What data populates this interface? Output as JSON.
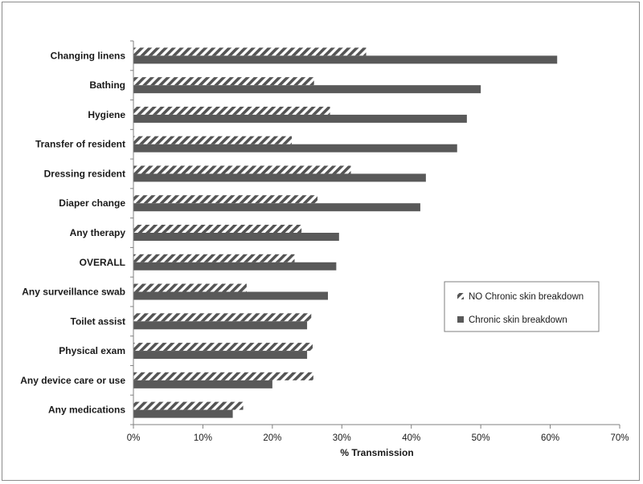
{
  "chart_data": {
    "type": "bar",
    "orientation": "horizontal",
    "categories": [
      "Changing linens",
      "Bathing",
      "Hygiene",
      "Transfer of resident",
      "Dressing resident",
      "Diaper change",
      "Any therapy",
      "OVERALL",
      "Any surveillance swab",
      "Toilet assist",
      "Physical exam",
      "Any device care or use",
      "Any medications"
    ],
    "series": [
      {
        "name": "NO Chronic skin breakdown",
        "pattern": "diagonal-hatch",
        "color": "#555555",
        "values": [
          33.5,
          26,
          28.3,
          22.8,
          31.3,
          26.5,
          24.2,
          23.2,
          16.3,
          25.6,
          25.8,
          25.9,
          15.8
        ]
      },
      {
        "name": "Chronic skin breakdown",
        "pattern": "solid",
        "color": "#595959",
        "values": [
          61,
          50,
          48,
          46.6,
          42.1,
          41.3,
          29.6,
          29.2,
          28,
          25,
          25,
          20,
          14.3
        ]
      }
    ],
    "xlabel": "% Transmission",
    "ylabel": "",
    "xlim": [
      0,
      70
    ],
    "x_ticks": [
      "0%",
      "10%",
      "20%",
      "30%",
      "40%",
      "50%",
      "60%",
      "70%"
    ],
    "grid": false,
    "legend_position": "right"
  }
}
